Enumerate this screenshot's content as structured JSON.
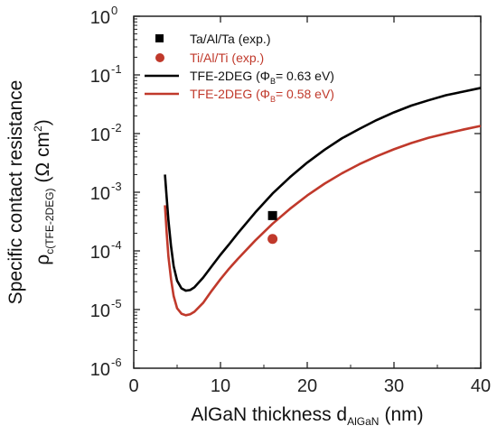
{
  "chart_data": {
    "type": "line",
    "title": "",
    "xlabel": {
      "main": "AlGaN thickness d",
      "sub": "AlGaN",
      "unit": "(nm)"
    },
    "ylabel": {
      "line1": "Specific contact resistance",
      "rho": "ρ",
      "sub": "c(TFE-2DEG)",
      "unit": "(Ω cm",
      "unit_sup": "2",
      "unit_close": ")"
    },
    "x_scale": "linear",
    "y_scale": "log",
    "xlim": [
      0,
      40
    ],
    "ylim": [
      1e-06,
      1
    ],
    "xticks": [
      {
        "value": 0,
        "label": "0"
      },
      {
        "value": 10,
        "label": "10"
      },
      {
        "value": 20,
        "label": "20"
      },
      {
        "value": 30,
        "label": "30"
      },
      {
        "value": 40,
        "label": "40"
      }
    ],
    "yticks": [
      {
        "exp": -6,
        "base": "10",
        "sup": "-6"
      },
      {
        "exp": -5,
        "base": "10",
        "sup": "-5"
      },
      {
        "exp": -4,
        "base": "10",
        "sup": "-4"
      },
      {
        "exp": -3,
        "base": "10",
        "sup": "-3"
      },
      {
        "exp": -2,
        "base": "10",
        "sup": "-2"
      },
      {
        "exp": -1,
        "base": "10",
        "sup": "-1"
      },
      {
        "exp": 0,
        "base": "10",
        "sup": "0"
      }
    ],
    "grid": false,
    "legend_position": "top-left",
    "series": [
      {
        "kind": "marker",
        "marker": "square",
        "color": "#000000",
        "legend": {
          "text": "Ta/Al/Ta (exp.)"
        },
        "points": [
          [
            16,
            0.0004
          ]
        ]
      },
      {
        "kind": "marker",
        "marker": "circle",
        "color": "#c0392b",
        "legend": {
          "text": "Ti/Al/Ti (exp.)"
        },
        "points": [
          [
            16,
            0.00016
          ]
        ]
      },
      {
        "kind": "line",
        "color": "#000000",
        "legend": {
          "prefix": "TFE-2DEG (",
          "symbol": "Φ",
          "sub": "B",
          "suffix": "= 0.63 eV)"
        },
        "x": [
          3.6,
          3.8,
          4,
          4.3,
          4.6,
          5,
          5.5,
          6,
          6.5,
          7,
          8,
          9,
          10,
          11,
          12,
          14,
          16,
          18,
          20,
          22,
          24,
          26,
          28,
          30,
          32,
          34,
          36,
          38,
          40
        ],
        "y": [
          0.002,
          0.0008,
          0.00033,
          0.00012,
          5.5e-05,
          3.1e-05,
          2.3e-05,
          2.1e-05,
          2.15e-05,
          2.4e-05,
          3.5e-05,
          5.5e-05,
          8.6e-05,
          0.00013,
          0.0002,
          0.00045,
          0.00095,
          0.0018,
          0.0032,
          0.0053,
          0.0083,
          0.012,
          0.017,
          0.023,
          0.03,
          0.037,
          0.045,
          0.052,
          0.06
        ]
      },
      {
        "kind": "line",
        "color": "#c0392b",
        "legend": {
          "prefix": "TFE-2DEG (",
          "symbol": "Φ",
          "sub": "B",
          "suffix": "= 0.58 eV)"
        },
        "x": [
          3.6,
          3.8,
          4,
          4.3,
          4.6,
          5,
          5.5,
          6,
          6.5,
          7,
          8,
          9,
          10,
          11,
          12,
          14,
          16,
          18,
          20,
          22,
          24,
          26,
          28,
          30,
          32,
          34,
          36,
          38,
          40
        ],
        "y": [
          0.0006,
          0.0002,
          8e-05,
          3.3e-05,
          1.7e-05,
          1.05e-05,
          8.5e-06,
          8e-06,
          8.3e-06,
          9.2e-06,
          1.3e-05,
          2.1e-05,
          3.3e-05,
          5e-05,
          7.3e-05,
          0.00015,
          0.00029,
          0.00052,
          0.00088,
          0.0014,
          0.0021,
          0.003,
          0.0041,
          0.0054,
          0.0069,
          0.0085,
          0.01,
          0.0117,
          0.0135
        ]
      }
    ]
  }
}
